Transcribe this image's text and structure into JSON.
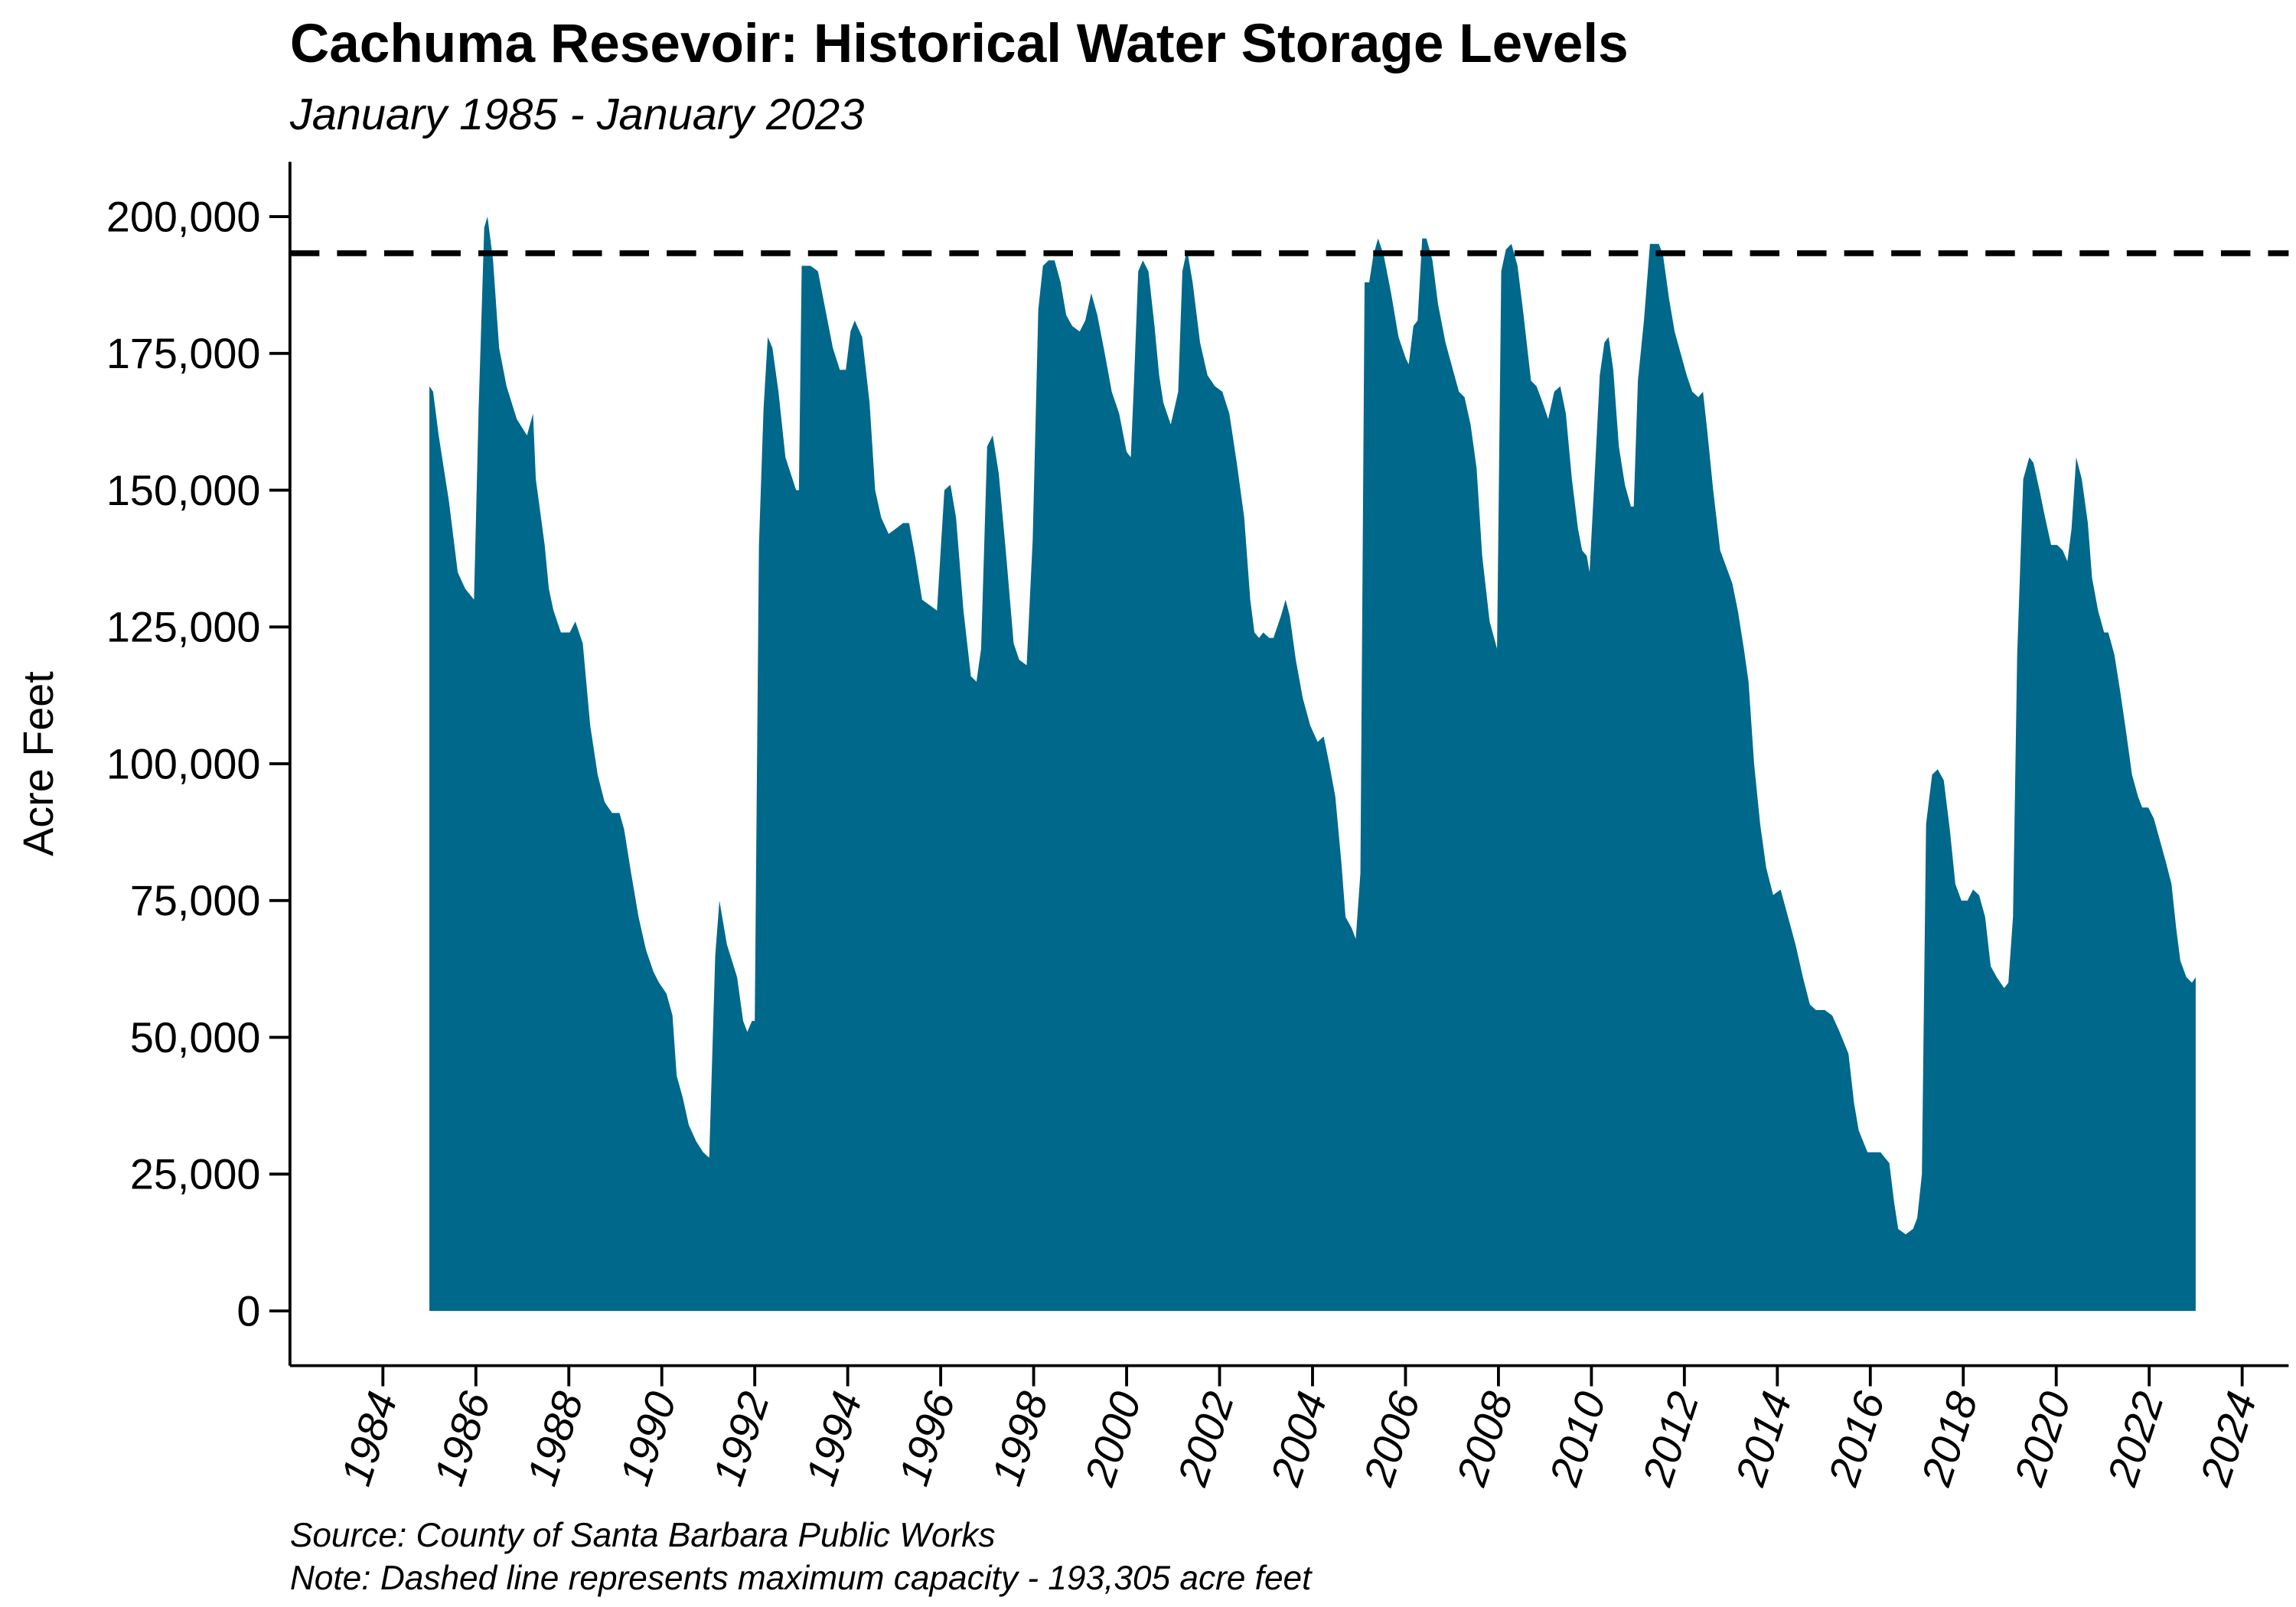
{
  "chart_data": {
    "type": "area",
    "title": "Cachuma Resevoir: Historical Water Storage Levels",
    "subtitle": "January 1985 - January 2023",
    "y_label": "Acre Feet",
    "notes": [
      "Source: County of Santa Barbara Public Works",
      "Note: Dashed line represents maximum capacity - 193,305 acre feet"
    ],
    "color": "#00688b",
    "reference_line": {
      "value": 193305,
      "color": "#000000",
      "style": "dashed"
    },
    "xlim": [
      1982,
      2025
    ],
    "xticks": [
      1984,
      1986,
      1988,
      1990,
      1992,
      1994,
      1996,
      1998,
      2000,
      2002,
      2004,
      2006,
      2008,
      2010,
      2012,
      2014,
      2016,
      2018,
      2020,
      2022,
      2024
    ],
    "ylim": [
      -10000,
      210000
    ],
    "yticks": [
      0,
      {
        "value": 25000,
        "label": "25,000"
      },
      {
        "value": 50000,
        "label": "50,000"
      },
      {
        "value": 75000,
        "label": "75,000"
      },
      {
        "value": 100000,
        "label": "100,000"
      },
      {
        "value": 125000,
        "label": "125,000"
      },
      {
        "value": 150000,
        "label": "150,000"
      },
      {
        "value": 175000,
        "label": "175,000"
      },
      {
        "value": 200000,
        "label": "200,000"
      }
    ],
    "x": [
      1985.0,
      1985.08,
      1985.2,
      1985.42,
      1985.61,
      1985.77,
      1985.96,
      1986.06,
      1986.18,
      1986.25,
      1986.37,
      1986.5,
      1986.66,
      1986.88,
      1987.1,
      1987.23,
      1987.29,
      1987.48,
      1987.57,
      1987.67,
      1987.83,
      1988.02,
      1988.14,
      1988.3,
      1988.46,
      1988.62,
      1988.77,
      1988.93,
      1989.09,
      1989.19,
      1989.34,
      1989.5,
      1989.66,
      1989.82,
      1989.94,
      1990.1,
      1990.23,
      1990.32,
      1990.45,
      1990.58,
      1990.74,
      1990.89,
      1991.02,
      1991.15,
      1991.24,
      1991.4,
      1991.62,
      1991.75,
      1991.84,
      1991.94,
      1992.0,
      1992.09,
      1992.19,
      1992.28,
      1992.38,
      1992.51,
      1992.66,
      1992.89,
      1992.95,
      1993.01,
      1993.2,
      1993.36,
      1993.52,
      1993.68,
      1993.83,
      1993.96,
      1994.06,
      1994.15,
      1994.31,
      1994.47,
      1994.59,
      1994.72,
      1994.88,
      1995.04,
      1995.19,
      1995.32,
      1995.45,
      1995.6,
      1995.76,
      1995.92,
      1996.08,
      1996.21,
      1996.33,
      1996.49,
      1996.65,
      1996.77,
      1996.87,
      1997.0,
      1997.12,
      1997.25,
      1997.41,
      1997.57,
      1997.69,
      1997.85,
      1997.98,
      1998.1,
      1998.2,
      1998.32,
      1998.45,
      1998.58,
      1998.7,
      1998.83,
      1998.99,
      1999.11,
      1999.24,
      1999.37,
      1999.53,
      1999.68,
      1999.84,
      2000.0,
      2000.09,
      2000.16,
      2000.25,
      2000.35,
      2000.47,
      2000.6,
      2000.7,
      2000.79,
      2000.95,
      2001.11,
      2001.2,
      2001.3,
      2001.42,
      2001.58,
      2001.74,
      2001.9,
      2002.06,
      2002.21,
      2002.37,
      2002.53,
      2002.66,
      2002.75,
      2002.85,
      2002.94,
      2003.07,
      2003.16,
      2003.32,
      2003.42,
      2003.51,
      2003.64,
      2003.79,
      2003.95,
      2004.11,
      2004.24,
      2004.36,
      2004.49,
      2004.62,
      2004.71,
      2004.84,
      2004.93,
      2005.03,
      2005.12,
      2005.22,
      2005.31,
      2005.41,
      2005.53,
      2005.69,
      2005.85,
      2006.01,
      2006.07,
      2006.17,
      2006.26,
      2006.36,
      2006.45,
      2006.58,
      2006.7,
      2006.86,
      2007.02,
      2007.15,
      2007.27,
      2007.4,
      2007.53,
      2007.65,
      2007.81,
      2007.97,
      2008.06,
      2008.16,
      2008.28,
      2008.41,
      2008.54,
      2008.7,
      2008.82,
      2008.95,
      2009.07,
      2009.2,
      2009.33,
      2009.45,
      2009.58,
      2009.71,
      2009.8,
      2009.9,
      2009.96,
      2010.09,
      2010.18,
      2010.28,
      2010.37,
      2010.47,
      2010.59,
      2010.72,
      2010.85,
      2010.91,
      2011.0,
      2011.13,
      2011.26,
      2011.45,
      2011.54,
      2011.67,
      2011.79,
      2011.92,
      2012.05,
      2012.17,
      2012.3,
      2012.4,
      2012.49,
      2012.62,
      2012.77,
      2012.9,
      2013.03,
      2013.15,
      2013.28,
      2013.38,
      2013.5,
      2013.63,
      2013.76,
      2013.91,
      2014.07,
      2014.23,
      2014.39,
      2014.55,
      2014.7,
      2014.83,
      2015.02,
      2015.18,
      2015.34,
      2015.53,
      2015.65,
      2015.75,
      2015.94,
      2016.06,
      2016.22,
      2016.41,
      2016.51,
      2016.6,
      2016.76,
      2016.92,
      2017.01,
      2017.11,
      2017.2,
      2017.33,
      2017.45,
      2017.58,
      2017.71,
      2017.83,
      2017.96,
      2018.09,
      2018.21,
      2018.34,
      2018.47,
      2018.59,
      2018.72,
      2018.88,
      2018.97,
      2019.07,
      2019.16,
      2019.29,
      2019.42,
      2019.51,
      2019.64,
      2019.76,
      2019.89,
      2020.02,
      2020.14,
      2020.24,
      2020.33,
      2020.43,
      2020.55,
      2020.68,
      2020.77,
      2020.9,
      2021.03,
      2021.12,
      2021.25,
      2021.38,
      2021.5,
      2021.63,
      2021.76,
      2021.85,
      2021.98,
      2022.1,
      2022.23,
      2022.36,
      2022.48,
      2022.58,
      2022.67,
      2022.8,
      2022.92,
      2023.0
    ],
    "values": [
      169000,
      168000,
      160000,
      148000,
      135000,
      132000,
      130000,
      165000,
      198000,
      200000,
      192000,
      176000,
      169000,
      163000,
      160000,
      164000,
      152000,
      140000,
      132000,
      128000,
      124000,
      124000,
      126000,
      122000,
      107000,
      98000,
      93000,
      91000,
      91000,
      88000,
      80000,
      72000,
      66000,
      62000,
      60000,
      58000,
      54000,
      43000,
      39000,
      34000,
      31000,
      29000,
      28000,
      65000,
      75000,
      67000,
      61000,
      53000,
      51000,
      53000,
      53000,
      140000,
      165000,
      178000,
      176000,
      168000,
      156000,
      150000,
      150000,
      191000,
      191000,
      190000,
      183000,
      176000,
      172000,
      172000,
      179000,
      181000,
      178000,
      166000,
      150000,
      145000,
      142000,
      143000,
      144000,
      144000,
      138000,
      130000,
      129000,
      128000,
      150000,
      151000,
      145000,
      128000,
      116000,
      115000,
      121000,
      158000,
      160000,
      153000,
      138000,
      122000,
      119000,
      118000,
      141000,
      183000,
      191000,
      192000,
      192000,
      188000,
      182000,
      180000,
      179000,
      181000,
      186000,
      182000,
      175000,
      168000,
      164000,
      157000,
      156000,
      170000,
      190000,
      192000,
      190000,
      180000,
      171000,
      166000,
      162000,
      168000,
      190000,
      194000,
      188000,
      177000,
      171000,
      169000,
      168000,
      164000,
      155000,
      145000,
      130000,
      124000,
      123000,
      124000,
      123000,
      123000,
      127000,
      130000,
      127000,
      119000,
      112000,
      107000,
      104000,
      105000,
      100000,
      94000,
      82000,
      72000,
      70000,
      68000,
      80000,
      188000,
      188000,
      193000,
      196000,
      193000,
      186000,
      178000,
      174000,
      173000,
      180000,
      181000,
      196000,
      196000,
      192000,
      184000,
      177000,
      172000,
      168000,
      167000,
      162000,
      154000,
      138000,
      126000,
      121000,
      190000,
      194000,
      195000,
      191000,
      182000,
      170000,
      169000,
      166000,
      163000,
      168000,
      169000,
      164000,
      152000,
      143000,
      139000,
      138000,
      135000,
      156000,
      171000,
      177000,
      178000,
      172000,
      158000,
      151000,
      147000,
      147000,
      170000,
      181000,
      195000,
      195000,
      193000,
      185000,
      179000,
      175000,
      171000,
      168000,
      167000,
      168000,
      161000,
      150000,
      139000,
      136000,
      133000,
      128000,
      121000,
      115000,
      100000,
      89000,
      81000,
      76000,
      77000,
      72000,
      67000,
      61000,
      56000,
      55000,
      55000,
      54000,
      51000,
      47000,
      38000,
      33000,
      29000,
      29000,
      29000,
      27000,
      20000,
      15000,
      14000,
      15000,
      17000,
      25000,
      89000,
      98000,
      99000,
      97000,
      88000,
      78000,
      75000,
      75000,
      77000,
      76000,
      72000,
      63000,
      61000,
      59000,
      60000,
      72000,
      120000,
      152000,
      156000,
      155000,
      150000,
      145000,
      140000,
      140000,
      139000,
      137000,
      143000,
      156000,
      152000,
      144000,
      134000,
      128000,
      124000,
      124000,
      120000,
      113000,
      106000,
      98000,
      94000,
      92000,
      92000,
      90000,
      86000,
      82000,
      78000,
      70000,
      64000,
      61000,
      60000,
      61000
    ]
  }
}
